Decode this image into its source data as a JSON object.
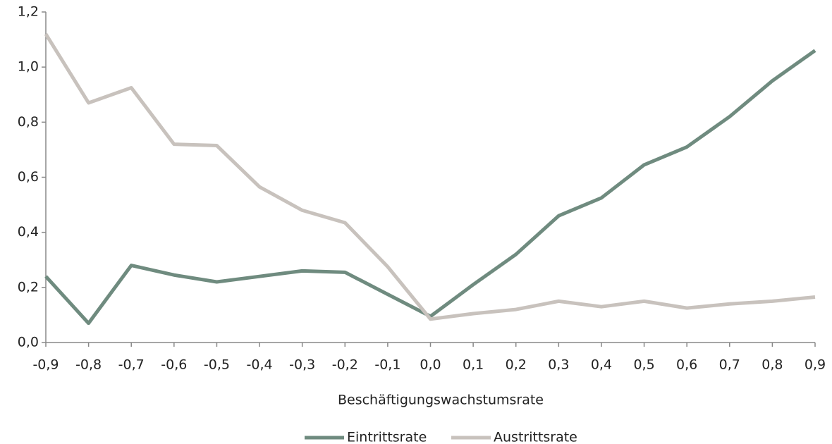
{
  "chart_data": {
    "type": "line",
    "x_label": "Beschäftigungswachstumsrate",
    "x": [
      -0.9,
      -0.8,
      -0.7,
      -0.6,
      -0.5,
      -0.4,
      -0.3,
      -0.2,
      -0.1,
      0,
      0.1,
      0.2,
      0.3,
      0.4,
      0.5,
      0.6,
      0.7,
      0.8,
      0.9
    ],
    "series": [
      {
        "name": "Eintrittsrate",
        "color": "#6f8b7f",
        "values": [
          0.24,
          0.07,
          0.28,
          0.245,
          0.22,
          0.24,
          0.26,
          0.255,
          0.175,
          0.095,
          0.21,
          0.32,
          0.46,
          0.525,
          0.645,
          0.71,
          0.82,
          0.95,
          1.06
        ]
      },
      {
        "name": "Austrittsrate",
        "color": "#c8c2bd",
        "values": [
          1.12,
          0.87,
          0.925,
          0.72,
          0.715,
          0.565,
          0.48,
          0.435,
          0.275,
          0.085,
          0.105,
          0.12,
          0.15,
          0.13,
          0.15,
          0.125,
          0.14,
          0.15,
          0.165
        ]
      }
    ],
    "xlim": [
      -0.9,
      0.9
    ],
    "xticks": [
      {
        "value": -0.9,
        "label": "-0,9"
      },
      {
        "value": -0.8,
        "label": "-0,8"
      },
      {
        "value": -0.7,
        "label": "-0,7"
      },
      {
        "value": -0.6,
        "label": "-0,6"
      },
      {
        "value": -0.5,
        "label": "-0,5"
      },
      {
        "value": -0.4,
        "label": "-0,4"
      },
      {
        "value": -0.3,
        "label": "-0,3"
      },
      {
        "value": -0.2,
        "label": "-0,2"
      },
      {
        "value": -0.1,
        "label": "-0,1"
      },
      {
        "value": 0,
        "label": "0,0"
      },
      {
        "value": 0.1,
        "label": "0,1"
      },
      {
        "value": 0.2,
        "label": "0,2"
      },
      {
        "value": 0.3,
        "label": "0,3"
      },
      {
        "value": 0.4,
        "label": "0,4"
      },
      {
        "value": 0.5,
        "label": "0,5"
      },
      {
        "value": 0.6,
        "label": "0,6"
      },
      {
        "value": 0.7,
        "label": "0,7"
      },
      {
        "value": 0.8,
        "label": "0,8"
      },
      {
        "value": 0.9,
        "label": "0,9"
      }
    ],
    "ylim": [
      0,
      1.2
    ],
    "yticks": [
      {
        "value": 0,
        "label": "0,0"
      },
      {
        "value": 0.2,
        "label": "0,2"
      },
      {
        "value": 0.4,
        "label": "0,4"
      },
      {
        "value": 0.6,
        "label": "0,6"
      },
      {
        "value": 0.8,
        "label": "0,8"
      },
      {
        "value": 1,
        "label": "1,0"
      },
      {
        "value": 1.2,
        "label": "1,2"
      }
    ],
    "grid": false,
    "legend": "bottom"
  }
}
